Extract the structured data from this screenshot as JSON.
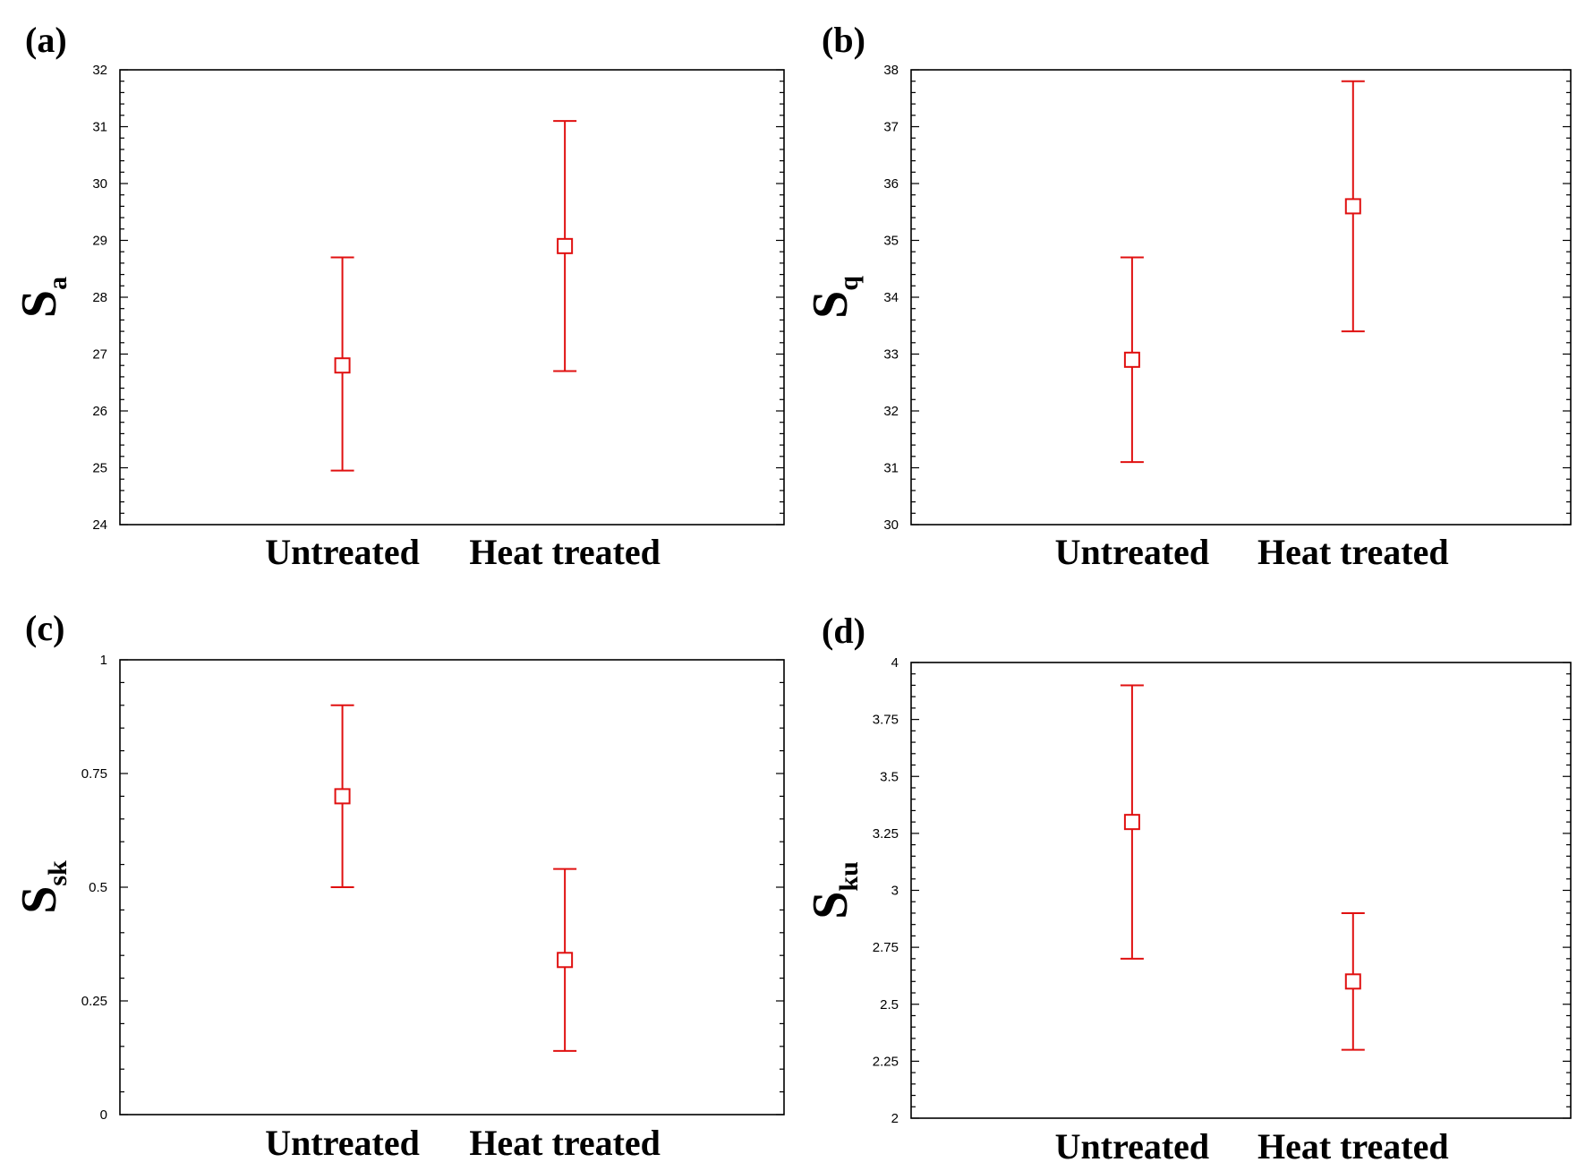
{
  "chart_data": [
    {
      "type": "scatter",
      "panel_label": "(a)",
      "ylabel": "S",
      "ylabel_sub": "a",
      "categories": [
        "Untreated",
        "Heat treated"
      ],
      "values": [
        26.8,
        28.9
      ],
      "error_low": [
        24.95,
        26.7
      ],
      "error_high": [
        28.7,
        31.1
      ],
      "ylim": [
        24,
        32
      ],
      "yticks": [
        24,
        25,
        26,
        27,
        28,
        29,
        30,
        31,
        32
      ],
      "ytick_labels": [
        "24",
        "25",
        "26",
        "27",
        "28",
        "29",
        "30",
        "31",
        "32"
      ],
      "minor_per_major": 5,
      "color": "#e01010"
    },
    {
      "type": "scatter",
      "panel_label": "(b)",
      "ylabel": "S",
      "ylabel_sub": "q",
      "categories": [
        "Untreated",
        "Heat treated"
      ],
      "values": [
        32.9,
        35.6
      ],
      "error_low": [
        31.1,
        33.4
      ],
      "error_high": [
        34.7,
        37.8
      ],
      "ylim": [
        30,
        38
      ],
      "yticks": [
        30,
        31,
        32,
        33,
        34,
        35,
        36,
        37,
        38
      ],
      "ytick_labels": [
        "30",
        "31",
        "32",
        "33",
        "34",
        "35",
        "36",
        "37",
        "38"
      ],
      "minor_per_major": 5,
      "color": "#e01010"
    },
    {
      "type": "scatter",
      "panel_label": "(c)",
      "ylabel": "S",
      "ylabel_sub": "sk",
      "categories": [
        "Untreated",
        "Heat treated"
      ],
      "values": [
        0.7,
        0.34
      ],
      "error_low": [
        0.5,
        0.14
      ],
      "error_high": [
        0.9,
        0.54
      ],
      "ylim": [
        0,
        1
      ],
      "yticks": [
        0,
        0.25,
        0.5,
        0.75,
        1
      ],
      "ytick_labels": [
        "0",
        "0.25",
        "0.5",
        "0.75",
        "1"
      ],
      "minor_per_major": 5,
      "color": "#e01010"
    },
    {
      "type": "scatter",
      "panel_label": "(d)",
      "ylabel": "S",
      "ylabel_sub": "ku",
      "categories": [
        "Untreated",
        "Heat treated"
      ],
      "values": [
        3.3,
        2.6
      ],
      "error_low": [
        2.7,
        2.3
      ],
      "error_high": [
        3.9,
        2.9
      ],
      "ylim": [
        2,
        4
      ],
      "yticks": [
        2,
        2.25,
        2.5,
        2.75,
        3,
        3.25,
        3.5,
        3.75,
        4
      ],
      "ytick_labels": [
        "2",
        "2.25",
        "2.5",
        "2.75",
        "3",
        "3.25",
        "3.5",
        "3.75",
        "4"
      ],
      "minor_per_major": 5,
      "color": "#e01010"
    }
  ]
}
